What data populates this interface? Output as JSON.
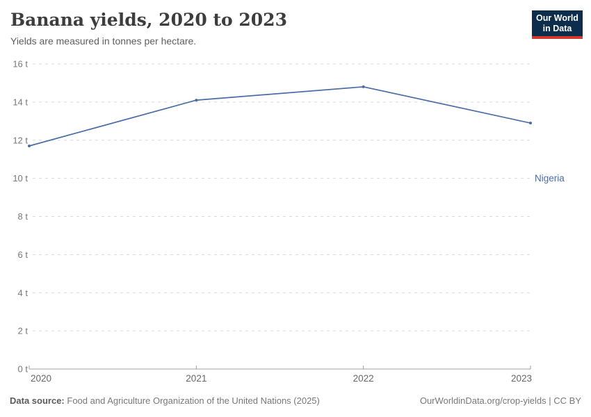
{
  "header": {
    "title": "Banana yields, 2020 to 2023",
    "subtitle": "Yields are measured in tonnes per hectare.",
    "logo": {
      "line1": "Our World",
      "line2": "in Data"
    }
  },
  "chart_data": {
    "type": "line",
    "title": "Banana yields, 2020 to 2023",
    "subtitle": "Yields are measured in tonnes per hectare.",
    "x": [
      2020,
      2021,
      2022,
      2023
    ],
    "series": [
      {
        "name": "Nigeria",
        "values": [
          11.7,
          14.1,
          14.8,
          12.9
        ],
        "color": "#4a6da8"
      }
    ],
    "unit": "t",
    "ylabel": "",
    "xlabel": "",
    "ylim": [
      0,
      16
    ],
    "yticks": [
      0,
      2,
      4,
      6,
      8,
      10,
      12,
      14,
      16
    ],
    "ytick_format": "{v} t",
    "grid": true,
    "grid_style": "dashed",
    "legend_position": "end-of-line"
  },
  "footer": {
    "source_label": "Data source:",
    "source_text": "Food and Agriculture Organization of the United Nations (2025)",
    "credit": "OurWorldinData.org/crop-yields | CC BY"
  },
  "colors": {
    "line": "#4a6da8",
    "logo_bg": "#0d2d4d",
    "logo_red": "#d5382d",
    "gridline": "#dadada",
    "axis": "#a1a1a1",
    "tick_label": "#78787d"
  }
}
